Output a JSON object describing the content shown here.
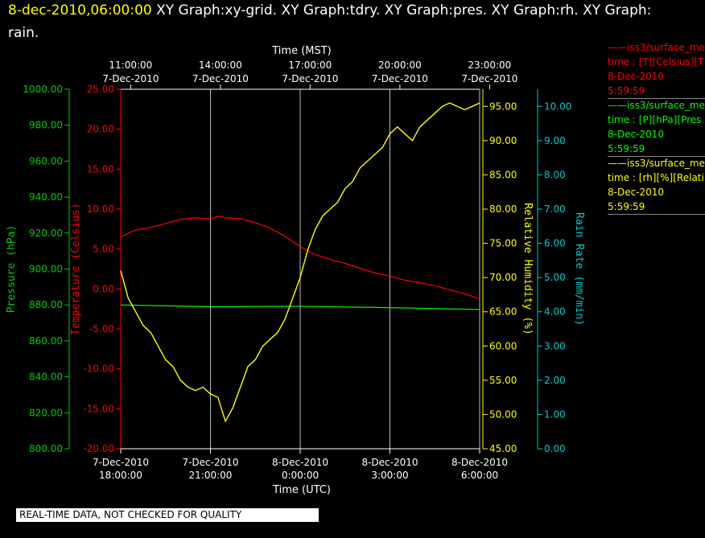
{
  "header": {
    "timestamp": "8-dec-2010,06:00:00",
    "title_rest": "  XY Graph:xy-grid.  XY Graph:tdry.  XY Graph:pres.  XY Graph:rh.  XY Graph:",
    "title_line2": "rain."
  },
  "footer": {
    "banner": "REAL-TIME DATA, NOT CHECKED FOR QUALITY"
  },
  "legend": [
    {
      "line1": "iss3/surface_me",
      "line2": "time : [T][Celsius][T",
      "line3": "8-Dec-2010",
      "line4": "5:59:59",
      "color": "#ff0000"
    },
    {
      "line1": "iss3/surface_me",
      "line2": "time : [P][hPa][Pres",
      "line3": "8-Dec-2010",
      "line4": "5:59:59",
      "color": "#00ff00"
    },
    {
      "line1": "iss3/surface_me",
      "line2": "time : [rh][%][Relati",
      "line3": "8-Dec-2010",
      "line4": "5:59:59",
      "color": "#ffff00"
    }
  ],
  "chart_data": {
    "type": "line",
    "x_top": {
      "label": "Time (MST)",
      "ticks": [
        {
          "l1": "11:00:00",
          "l2": "7-Dec-2010"
        },
        {
          "l1": "14:00:00",
          "l2": "7-Dec-2010"
        },
        {
          "l1": "17:00:00",
          "l2": "7-Dec-2010"
        },
        {
          "l1": "20:00:00",
          "l2": "7-Dec-2010"
        },
        {
          "l1": "23:00:00",
          "l2": "7-Dec-2010"
        }
      ]
    },
    "x_bottom": {
      "label": "Time (UTC)",
      "xlim": [
        0,
        12
      ],
      "tick_positions": [
        0,
        3,
        6,
        9,
        12
      ],
      "ticks": [
        {
          "l1": "7-Dec-2010",
          "l2": "18:00:00"
        },
        {
          "l1": "7-Dec-2010",
          "l2": "21:00:00"
        },
        {
          "l1": "8-Dec-2010",
          "l2": "0:00:00"
        },
        {
          "l1": "8-Dec-2010",
          "l2": "3:00:00"
        },
        {
          "l1": "8-Dec-2010",
          "l2": "6:00:00"
        }
      ]
    },
    "axes": {
      "pressure": {
        "label": "Pressure (hPa)",
        "color": "#00cc00",
        "ylim": [
          800,
          1000
        ],
        "ticks": [
          "800.00",
          "820.00",
          "840.00",
          "860.00",
          "880.00",
          "900.00",
          "920.00",
          "940.00",
          "960.00",
          "980.00",
          "1000.00"
        ]
      },
      "temperature": {
        "label": "Temperature (Celsius)",
        "color": "#ff0000",
        "ylim": [
          -20,
          25
        ],
        "ticks": [
          "-20.00",
          "-15.00",
          "-10.00",
          "-5.00",
          "0.00",
          "5.00",
          "10.00",
          "15.00",
          "20.00",
          "25.00"
        ]
      },
      "rh": {
        "label": "Relative Humidity (%)",
        "color": "#ffff00",
        "ylim": [
          45,
          97.5
        ],
        "ticks": [
          "45.00",
          "50.00",
          "55.00",
          "60.00",
          "65.00",
          "70.00",
          "75.00",
          "80.00",
          "85.00",
          "90.00",
          "95.00"
        ]
      },
      "rain": {
        "label": "Rain Rate (mm/min)",
        "color": "#00cccc",
        "ylim": [
          0,
          10.5
        ],
        "ticks": [
          "0.00",
          "1.00",
          "2.00",
          "3.00",
          "4.00",
          "5.00",
          "6.00",
          "7.00",
          "8.00",
          "9.00",
          "10.00"
        ]
      }
    },
    "series": [
      {
        "axis": "temperature",
        "color": "#ff0000",
        "x": [
          0,
          0.5,
          1,
          1.5,
          2,
          2.5,
          3,
          3.25,
          3.5,
          4,
          4.5,
          5,
          5.5,
          6,
          6.5,
          7,
          7.5,
          8,
          8.5,
          9,
          9.5,
          10,
          10.5,
          11,
          11.5,
          12
        ],
        "values": [
          6.5,
          7.4,
          7.7,
          8.2,
          8.7,
          8.9,
          8.8,
          9.1,
          8.9,
          8.8,
          8.3,
          7.6,
          6.6,
          5.3,
          4.3,
          3.7,
          3.2,
          2.6,
          2.0,
          1.6,
          1.1,
          0.8,
          0.4,
          -0.1,
          -0.6,
          -1.2
        ]
      },
      {
        "axis": "pressure",
        "color": "#00ff00",
        "x": [
          0,
          3,
          6,
          9,
          12
        ],
        "values": [
          880.0,
          879.0,
          879.3,
          878.5,
          877.5
        ]
      },
      {
        "axis": "rh",
        "color": "#ffff00",
        "x": [
          0,
          0.25,
          0.5,
          0.75,
          1,
          1.25,
          1.5,
          1.75,
          2,
          2.25,
          2.5,
          2.75,
          3,
          3.25,
          3.5,
          3.75,
          4,
          4.25,
          4.5,
          4.75,
          5,
          5.25,
          5.5,
          5.75,
          6,
          6.25,
          6.5,
          6.75,
          7,
          7.25,
          7.5,
          7.75,
          8,
          8.25,
          8.5,
          8.75,
          9,
          9.25,
          9.5,
          9.75,
          10,
          10.25,
          10.5,
          10.75,
          11,
          11.25,
          11.5,
          11.75,
          12
        ],
        "values": [
          71,
          67,
          65,
          63,
          62,
          60,
          58,
          57,
          55,
          54,
          53.5,
          54,
          53,
          52.5,
          49,
          51,
          54,
          57,
          58,
          60,
          61,
          62,
          64,
          67,
          70,
          74,
          77,
          79,
          80,
          81,
          83,
          84,
          86,
          87,
          88,
          89,
          91,
          92,
          91,
          90,
          92,
          93,
          94,
          95,
          95.5,
          95,
          94.5,
          95,
          95.5
        ]
      },
      {
        "axis": "rain",
        "color": "#00cccc",
        "x": [
          0,
          12
        ],
        "values": [
          0,
          0
        ]
      }
    ],
    "grid": true
  }
}
